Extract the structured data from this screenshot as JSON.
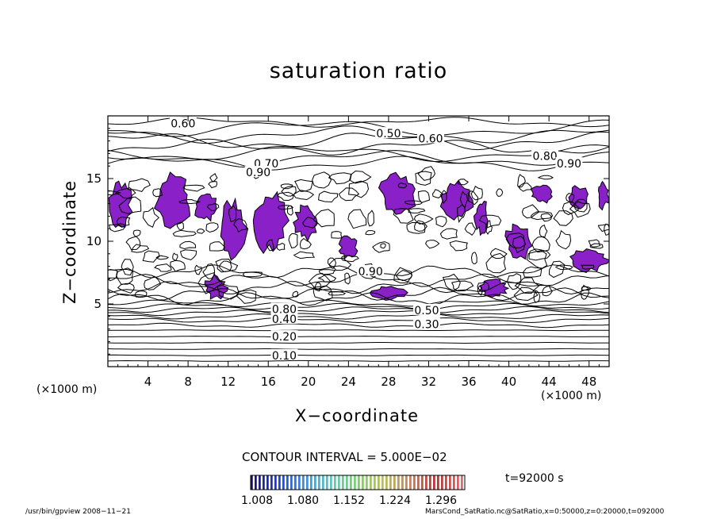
{
  "chart_data": {
    "type": "contour",
    "title": "saturation ratio",
    "xlabel": "X−coordinate",
    "ylabel": "Z−coordinate",
    "x_unit_left": "(×1000 m)",
    "x_unit_right": "(×1000 m)",
    "xlim": [
      0,
      50
    ],
    "ylim": [
      0,
      20
    ],
    "x_ticks": [
      "4",
      "8",
      "12",
      "16",
      "20",
      "24",
      "28",
      "32",
      "36",
      "40",
      "44",
      "48"
    ],
    "x_tick_values": [
      4,
      8,
      12,
      16,
      20,
      24,
      28,
      32,
      36,
      40,
      44,
      48
    ],
    "y_ticks": [
      "5",
      "10",
      "15"
    ],
    "y_tick_values": [
      5,
      10,
      15
    ],
    "contour_labels": [
      {
        "text": "0.10",
        "x": 17.6,
        "z": 0.9
      },
      {
        "text": "0.20",
        "x": 17.6,
        "z": 2.4
      },
      {
        "text": "0.40",
        "x": 17.6,
        "z": 3.8
      },
      {
        "text": "0.30",
        "x": 31.8,
        "z": 3.4
      },
      {
        "text": "0.50",
        "x": 31.8,
        "z": 4.5
      },
      {
        "text": "0.80",
        "x": 17.6,
        "z": 4.6
      },
      {
        "text": "0.90",
        "x": 26.2,
        "z": 7.6
      },
      {
        "text": "0.60",
        "x": 7.5,
        "z": 19.4
      },
      {
        "text": "0.50",
        "x": 28.0,
        "z": 18.6
      },
      {
        "text": "0.60",
        "x": 32.2,
        "z": 18.2
      },
      {
        "text": "0.70",
        "x": 15.8,
        "z": 16.2
      },
      {
        "text": "0.90",
        "x": 15.0,
        "z": 15.5
      },
      {
        "text": "0.80",
        "x": 43.6,
        "z": 16.8
      },
      {
        "text": "0.90",
        "x": 46.0,
        "z": 16.2
      }
    ],
    "contour_interval_text": "CONTOUR INTERVAL = 5.000E−02",
    "colorbar": {
      "ticks": [
        "1.008",
        "1.080",
        "1.152",
        "1.224",
        "1.296"
      ],
      "colors": [
        "#1b1464",
        "#2340c8",
        "#3a8fe0",
        "#5ac8c0",
        "#7ad070",
        "#b8c050",
        "#c88060",
        "#b83030",
        "#d86a6a"
      ]
    },
    "fill_color": "#8a20c8",
    "supersaturated_regions": [
      {
        "x": [
          0,
          2.5
        ],
        "z": [
          10.8,
          15.0
        ]
      },
      {
        "x": [
          4.5,
          8.5
        ],
        "z": [
          11.0,
          15.5
        ]
      },
      {
        "x": [
          8.5,
          11.0
        ],
        "z": [
          11.5,
          14.0
        ]
      },
      {
        "x": [
          11.0,
          14.0
        ],
        "z": [
          8.5,
          13.5
        ]
      },
      {
        "x": [
          14.5,
          18.0
        ],
        "z": [
          8.8,
          14.5
        ]
      },
      {
        "x": [
          18.5,
          21.0
        ],
        "z": [
          10.0,
          13.0
        ]
      },
      {
        "x": [
          23.0,
          25.0
        ],
        "z": [
          8.5,
          10.5
        ]
      },
      {
        "x": [
          27.0,
          31.0
        ],
        "z": [
          12.0,
          15.5
        ]
      },
      {
        "x": [
          33.0,
          36.5
        ],
        "z": [
          11.5,
          15.0
        ]
      },
      {
        "x": [
          36.5,
          38.0
        ],
        "z": [
          10.5,
          13.5
        ]
      },
      {
        "x": [
          39.5,
          42.5
        ],
        "z": [
          8.5,
          11.5
        ]
      },
      {
        "x": [
          42.0,
          44.5
        ],
        "z": [
          13.0,
          14.5
        ]
      },
      {
        "x": [
          46.0,
          48.0
        ],
        "z": [
          12.5,
          14.5
        ]
      },
      {
        "x": [
          46.0,
          50.0
        ],
        "z": [
          7.5,
          9.5
        ]
      },
      {
        "x": [
          9.5,
          12.0
        ],
        "z": [
          5.3,
          7.3
        ]
      },
      {
        "x": [
          26.0,
          30.0
        ],
        "z": [
          5.3,
          6.5
        ]
      },
      {
        "x": [
          37.0,
          40.0
        ],
        "z": [
          5.5,
          7.0
        ]
      },
      {
        "x": [
          48.8,
          50.0
        ],
        "z": [
          12.5,
          15.0
        ]
      }
    ],
    "time_label": "t=92000 s",
    "footer_left": "/usr/bin/gpview   2008−11−21",
    "footer_right": "MarsCond_SatRatio.nc@SatRatio,x=0:50000,z=0:20000,t=092000"
  }
}
